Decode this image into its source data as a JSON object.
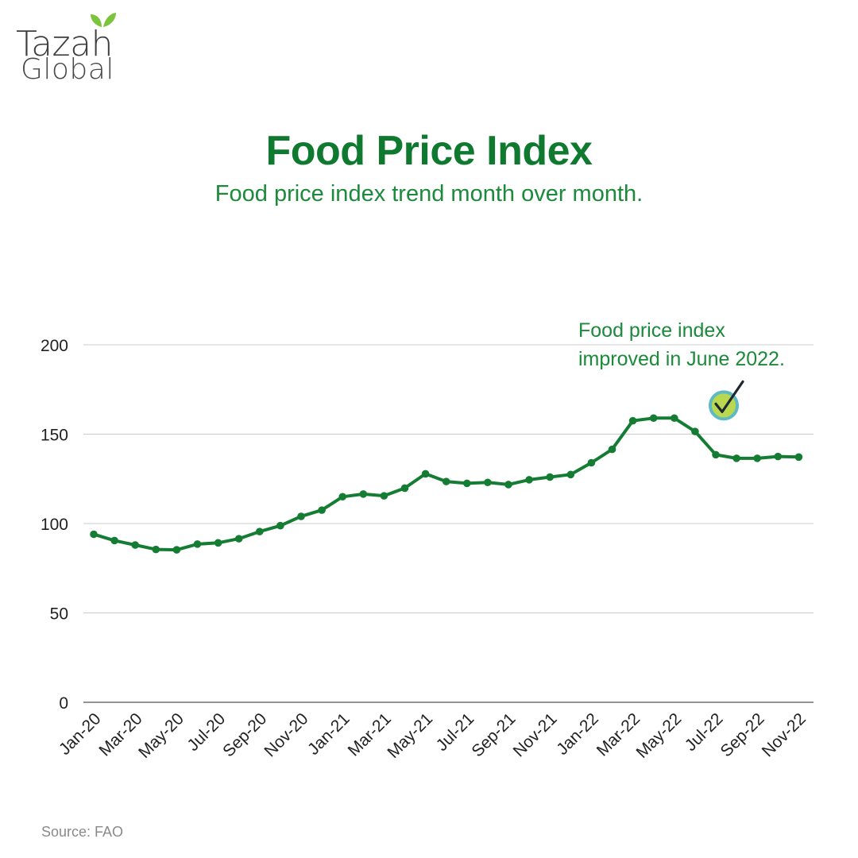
{
  "brand": {
    "name_line1": "Tazah",
    "name_line2": "Global",
    "accent_color": "#7cc43e"
  },
  "header": {
    "title": "Food Price Index",
    "subtitle": "Food price index trend month over month."
  },
  "footer": {
    "source": "Source: FAO"
  },
  "chart_data": {
    "type": "line",
    "title": "Food Price Index",
    "xlabel": "",
    "ylabel": "",
    "ylim": [
      0,
      200
    ],
    "yticks": [
      0,
      50,
      100,
      150,
      200
    ],
    "grid": true,
    "line_color": "#157d33",
    "categories": [
      "Jan-20",
      "Feb-20",
      "Mar-20",
      "Apr-20",
      "May-20",
      "Jun-20",
      "Jul-20",
      "Aug-20",
      "Sep-20",
      "Oct-20",
      "Nov-20",
      "Dec-20",
      "Jan-21",
      "Feb-21",
      "Mar-21",
      "Apr-21",
      "May-21",
      "Jun-21",
      "Jul-21",
      "Aug-21",
      "Sep-21",
      "Oct-21",
      "Nov-21",
      "Dec-21",
      "Jan-22",
      "Feb-22",
      "Mar-22",
      "Apr-22",
      "May-22",
      "Jun-22",
      "Jul-22",
      "Aug-22",
      "Sep-22",
      "Oct-22",
      "Nov-22"
    ],
    "tick_labels": [
      "Jan-20",
      "Mar-20",
      "May-20",
      "Jul-20",
      "Sep-20",
      "Nov-20",
      "Jan-21",
      "Mar-21",
      "May-21",
      "Jul-21",
      "Sep-21",
      "Nov-21",
      "Jan-22",
      "Mar-22",
      "May-22",
      "Jul-22",
      "Sep-22",
      "Nov-22"
    ],
    "values": [
      94,
      90.5,
      88,
      85.5,
      85.3,
      88.5,
      89.2,
      91.5,
      95.5,
      98.8,
      104,
      107.5,
      115,
      116.5,
      115.5,
      119.8,
      127.8,
      123.5,
      122.5,
      123,
      121.8,
      124.5,
      126,
      127.4,
      134,
      141.5,
      157.5,
      159,
      159,
      151.5,
      138.5,
      136.5,
      136.5,
      137.5,
      137.2
    ],
    "annotation": {
      "lines": [
        "Food price index",
        "improved in June 2022."
      ],
      "icon": "check-circle-icon",
      "icon_fill": "#b9d84f",
      "icon_ring": "#5fb9c5"
    }
  }
}
